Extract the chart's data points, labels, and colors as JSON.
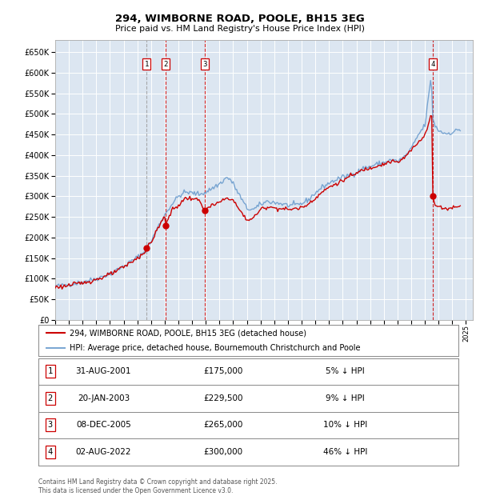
{
  "title": "294, WIMBORNE ROAD, POOLE, BH15 3EG",
  "subtitle": "Price paid vs. HM Land Registry's House Price Index (HPI)",
  "background_color": "#ffffff",
  "plot_bg_color": "#dce6f1",
  "grid_color": "#ffffff",
  "line_color_red": "#cc0000",
  "line_color_blue": "#6699cc",
  "ylim": [
    0,
    680000
  ],
  "yticks": [
    0,
    50000,
    100000,
    150000,
    200000,
    250000,
    300000,
    350000,
    400000,
    450000,
    500000,
    550000,
    600000,
    650000
  ],
  "xlim_left": 1995.0,
  "xlim_right": 2025.5,
  "legend_red": "294, WIMBORNE ROAD, POOLE, BH15 3EG (detached house)",
  "legend_blue": "HPI: Average price, detached house, Bournemouth Christchurch and Poole",
  "transactions": [
    {
      "num": 1,
      "date": "31-AUG-2001",
      "price": "£175,000",
      "pct": "5% ↓ HPI",
      "year": 2001.67,
      "value": 175000,
      "vline_style": "dashed_gray"
    },
    {
      "num": 2,
      "date": "20-JAN-2003",
      "price": "£229,500",
      "pct": "9% ↓ HPI",
      "year": 2003.05,
      "value": 229500,
      "vline_style": "dashed_red"
    },
    {
      "num": 3,
      "date": "08-DEC-2005",
      "price": "£265,000",
      "pct": "10% ↓ HPI",
      "year": 2005.93,
      "value": 265000,
      "vline_style": "dashed_red"
    },
    {
      "num": 4,
      "date": "02-AUG-2022",
      "price": "£300,000",
      "pct": "46% ↓ HPI",
      "year": 2022.58,
      "value": 300000,
      "vline_style": "dashed_red"
    }
  ],
  "footnote": "Contains HM Land Registry data © Crown copyright and database right 2025.\nThis data is licensed under the Open Government Licence v3.0."
}
